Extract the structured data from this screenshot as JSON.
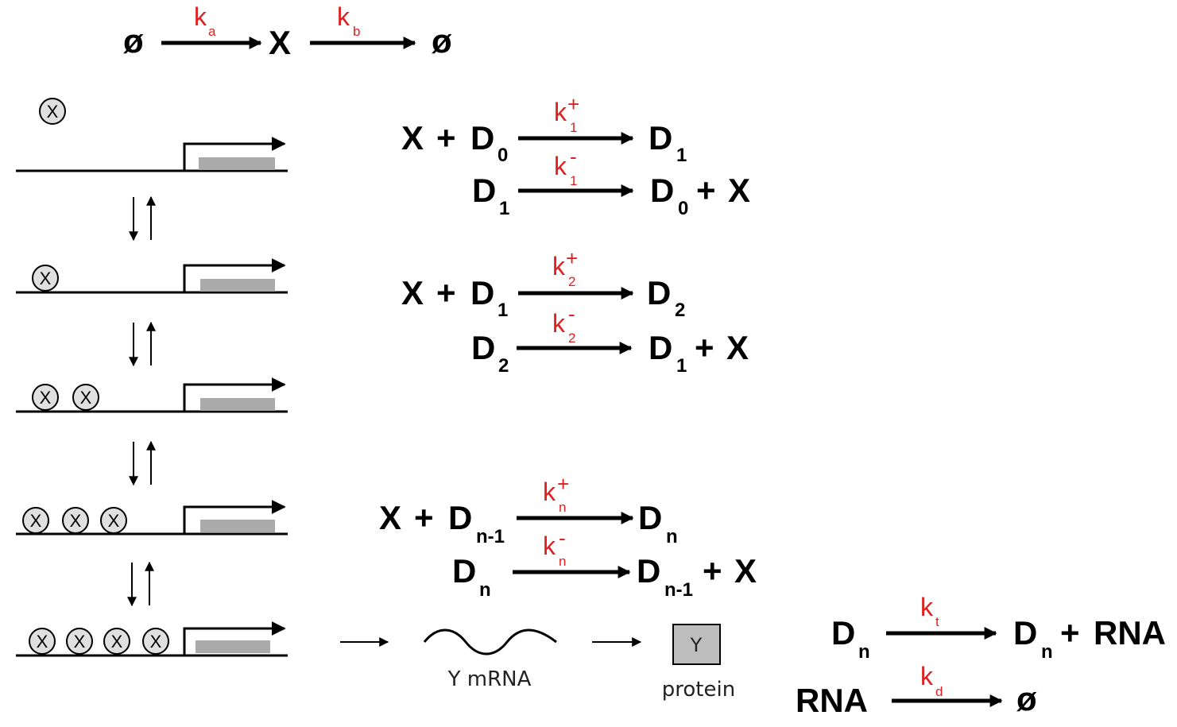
{
  "symbols": {
    "empty": "ø",
    "x": "X",
    "plus": "+",
    "D": "D",
    "rna": "RNA"
  },
  "rates": {
    "k": "k",
    "a": "a",
    "b": "b",
    "plus": "+",
    "minus": "-",
    "s1": "1",
    "s2": "2",
    "sn": "n",
    "t": "t",
    "d": "d"
  },
  "subscripts": {
    "zero": "0",
    "one": "1",
    "two": "2",
    "n": "n",
    "nm1": "n-1"
  },
  "labels": {
    "mrna": "Y mRNA",
    "protein_box": "Y",
    "protein": "protein"
  },
  "colors": {
    "rate": "#e02020",
    "gene_box": "#aaaaaa",
    "x_fill": "#e0e0e0",
    "protein_fill": "#bdbdbd"
  }
}
